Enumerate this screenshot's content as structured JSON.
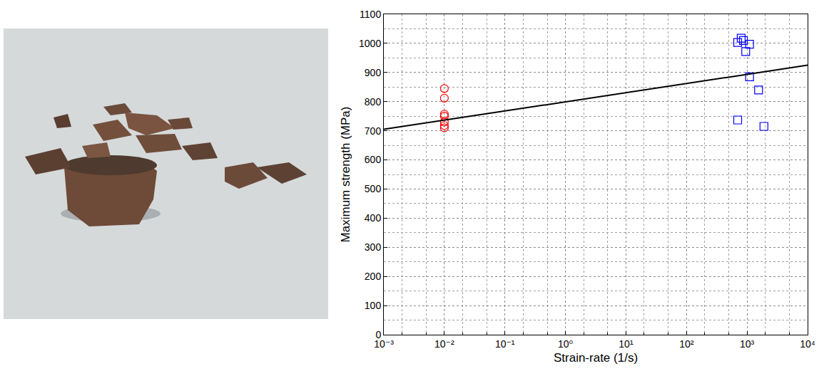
{
  "chart_data": {
    "type": "scatter",
    "x_label": "Strain-rate (1/s)",
    "y_label": "Maximum strength (MPa)",
    "log": "x",
    "grid": true,
    "xlim": [
      0.001,
      10000
    ],
    "ylim": [
      0,
      1100
    ],
    "xticks": [
      {
        "value": 0.001,
        "label": "10⁻³"
      },
      {
        "value": 0.01,
        "label": "10⁻²"
      },
      {
        "value": 0.1,
        "label": "10⁻¹"
      },
      {
        "value": 1,
        "label": "10⁰"
      },
      {
        "value": 10,
        "label": "10¹"
      },
      {
        "value": 100,
        "label": "10²"
      },
      {
        "value": 1000,
        "label": "10³"
      },
      {
        "value": 10000,
        "label": "10⁴"
      }
    ],
    "yticks": [
      0,
      100,
      200,
      300,
      400,
      500,
      600,
      700,
      800,
      900,
      1000,
      1100
    ],
    "series": [
      {
        "type": "scatter",
        "color": "#ff0000",
        "marker": "circle-open",
        "x": [
          0.01,
          0.01,
          0.01,
          0.01,
          0.01,
          0.01,
          0.01
        ],
        "values": [
          845,
          812,
          757,
          750,
          730,
          718,
          710
        ]
      },
      {
        "type": "scatter",
        "color": "#0000ff",
        "marker": "square-open",
        "x": [
          700,
          800,
          870,
          950,
          1100,
          1100,
          1550,
          700,
          1900
        ],
        "values": [
          1003,
          1018,
          1010,
          972,
          997,
          885,
          840,
          737,
          715
        ]
      },
      {
        "type": "line",
        "color": "#000000",
        "line_style": "solid",
        "x": [
          0.001,
          10000
        ],
        "values": [
          705,
          925
        ]
      }
    ]
  }
}
